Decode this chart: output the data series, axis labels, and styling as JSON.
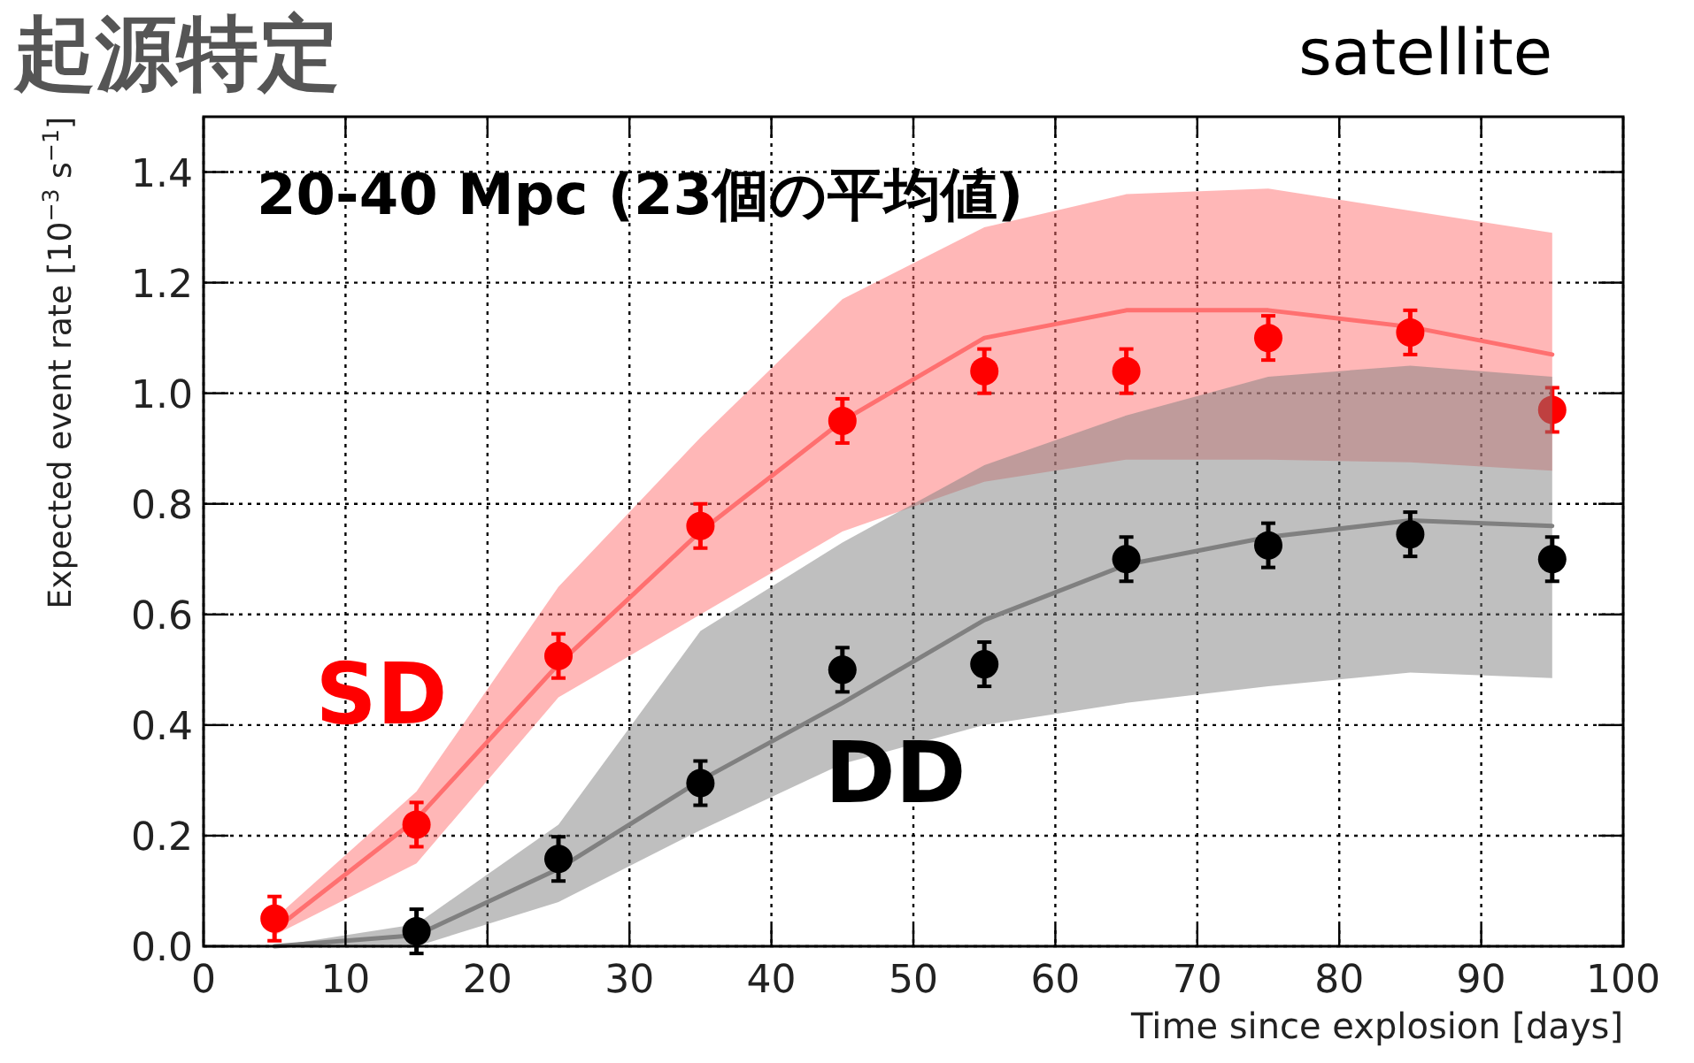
{
  "chart_data": {
    "type": "scatter",
    "title": "起源特定",
    "xlabel": "Time since explosion [days]",
    "ylabel": "Expected event rate [10$^{−3}$ s$^{−1}$]",
    "annotations": [
      "20-40 Mpc (23個の平均値)",
      "satellite"
    ],
    "xlim": [
      0,
      100
    ],
    "xticks": [
      0,
      10,
      20,
      30,
      40,
      50,
      60,
      70,
      80,
      90,
      100
    ],
    "ylim": [
      0,
      1.5
    ],
    "yticks": [
      {
        "value": 0,
        "label": "0.0"
      },
      0.2,
      0.4,
      0.6,
      0.8,
      {
        "value": 1,
        "label": "1.0"
      },
      1.2,
      1.4
    ],
    "grid": true,
    "series": [
      {
        "type": "line",
        "color": "#ff7070",
        "x": [
          5,
          15,
          25,
          35,
          45,
          55,
          65,
          75,
          85,
          95
        ],
        "values": [
          0.03,
          0.23,
          0.51,
          0.75,
          0.95,
          1.1,
          1.15,
          1.15,
          1.12,
          1.07
        ],
        "lower": [
          0.02,
          0.15,
          0.45,
          0.6,
          0.75,
          0.84,
          0.88,
          0.88,
          0.875,
          0.86
        ],
        "upper": [
          0.05,
          0.28,
          0.65,
          0.92,
          1.17,
          1.3,
          1.36,
          1.37,
          1.33,
          1.29
        ]
      },
      {
        "marker": "circle",
        "name": "SD",
        "color": "#ff0000",
        "x": [
          5,
          15,
          25,
          35,
          45,
          55,
          65,
          75,
          85,
          95
        ],
        "values": [
          0.05,
          0.22,
          0.525,
          0.76,
          0.95,
          1.04,
          1.04,
          1.1,
          1.11,
          0.97
        ],
        "errors": [
          0.04,
          0.04,
          0.04,
          0.04,
          0.04,
          0.04,
          0.04,
          0.04,
          0.04,
          0.04
        ]
      },
      {
        "type": "line",
        "color": "#808080",
        "x": [
          5,
          15,
          25,
          35,
          45,
          55,
          65,
          75,
          85,
          95
        ],
        "values": [
          0.0,
          0.02,
          0.14,
          0.3,
          0.44,
          0.59,
          0.69,
          0.74,
          0.77,
          0.76
        ],
        "lower": [
          0.0,
          0.0,
          0.08,
          0.21,
          0.33,
          0.4,
          0.44,
          0.47,
          0.495,
          0.485
        ],
        "upper": [
          0.0,
          0.04,
          0.22,
          0.57,
          0.73,
          0.87,
          0.96,
          1.03,
          1.05,
          1.03
        ]
      },
      {
        "marker": "circle",
        "name": "DD",
        "color": "#000000",
        "x": [
          15,
          25,
          35,
          45,
          55,
          65,
          75,
          85,
          95
        ],
        "values": [
          0.027,
          0.158,
          0.295,
          0.5,
          0.51,
          0.7,
          0.725,
          0.745,
          0.7
        ],
        "errors": [
          0.04,
          0.04,
          0.04,
          0.04,
          0.04,
          0.04,
          0.04,
          0.04,
          0.04
        ]
      }
    ]
  }
}
